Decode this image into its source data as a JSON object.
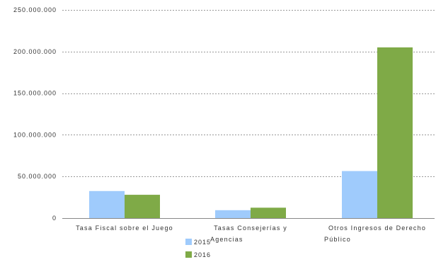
{
  "chart_data": {
    "type": "bar",
    "categories": [
      [
        "Tasa Fiscal sobre el Juego"
      ],
      [
        "Tasas Consejerías y",
        "Agencias"
      ],
      [
        "Otros Ingresos de Derecho",
        "Público"
      ]
    ],
    "series": [
      {
        "name": "2015",
        "color": "#9fcbfc",
        "values": [
          32500000,
          9500000,
          56500000
        ]
      },
      {
        "name": "2016",
        "color": "#7faa47",
        "values": [
          28000000,
          12500000,
          205000000
        ]
      }
    ],
    "ylim": [
      0,
      250000000
    ],
    "yticks": [
      0,
      50000000,
      100000000,
      150000000,
      200000000,
      250000000
    ],
    "ytick_labels": [
      "0",
      "50.000.000",
      "100.000.000",
      "150.000.000",
      "200.000.000",
      "250.000.000"
    ],
    "grid": true,
    "legend_position": "bottom"
  }
}
